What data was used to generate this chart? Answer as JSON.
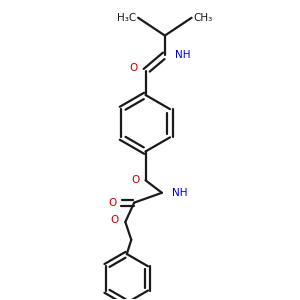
{
  "background_color": "#ffffff",
  "bond_color": "#1a1a1a",
  "oxygen_color": "#cc0000",
  "nitrogen_color": "#0000cc",
  "line_width": 1.6,
  "figsize": [
    3.0,
    3.0
  ],
  "dpi": 100,
  "xlim": [
    0,
    10
  ],
  "ylim": [
    0,
    10
  ]
}
